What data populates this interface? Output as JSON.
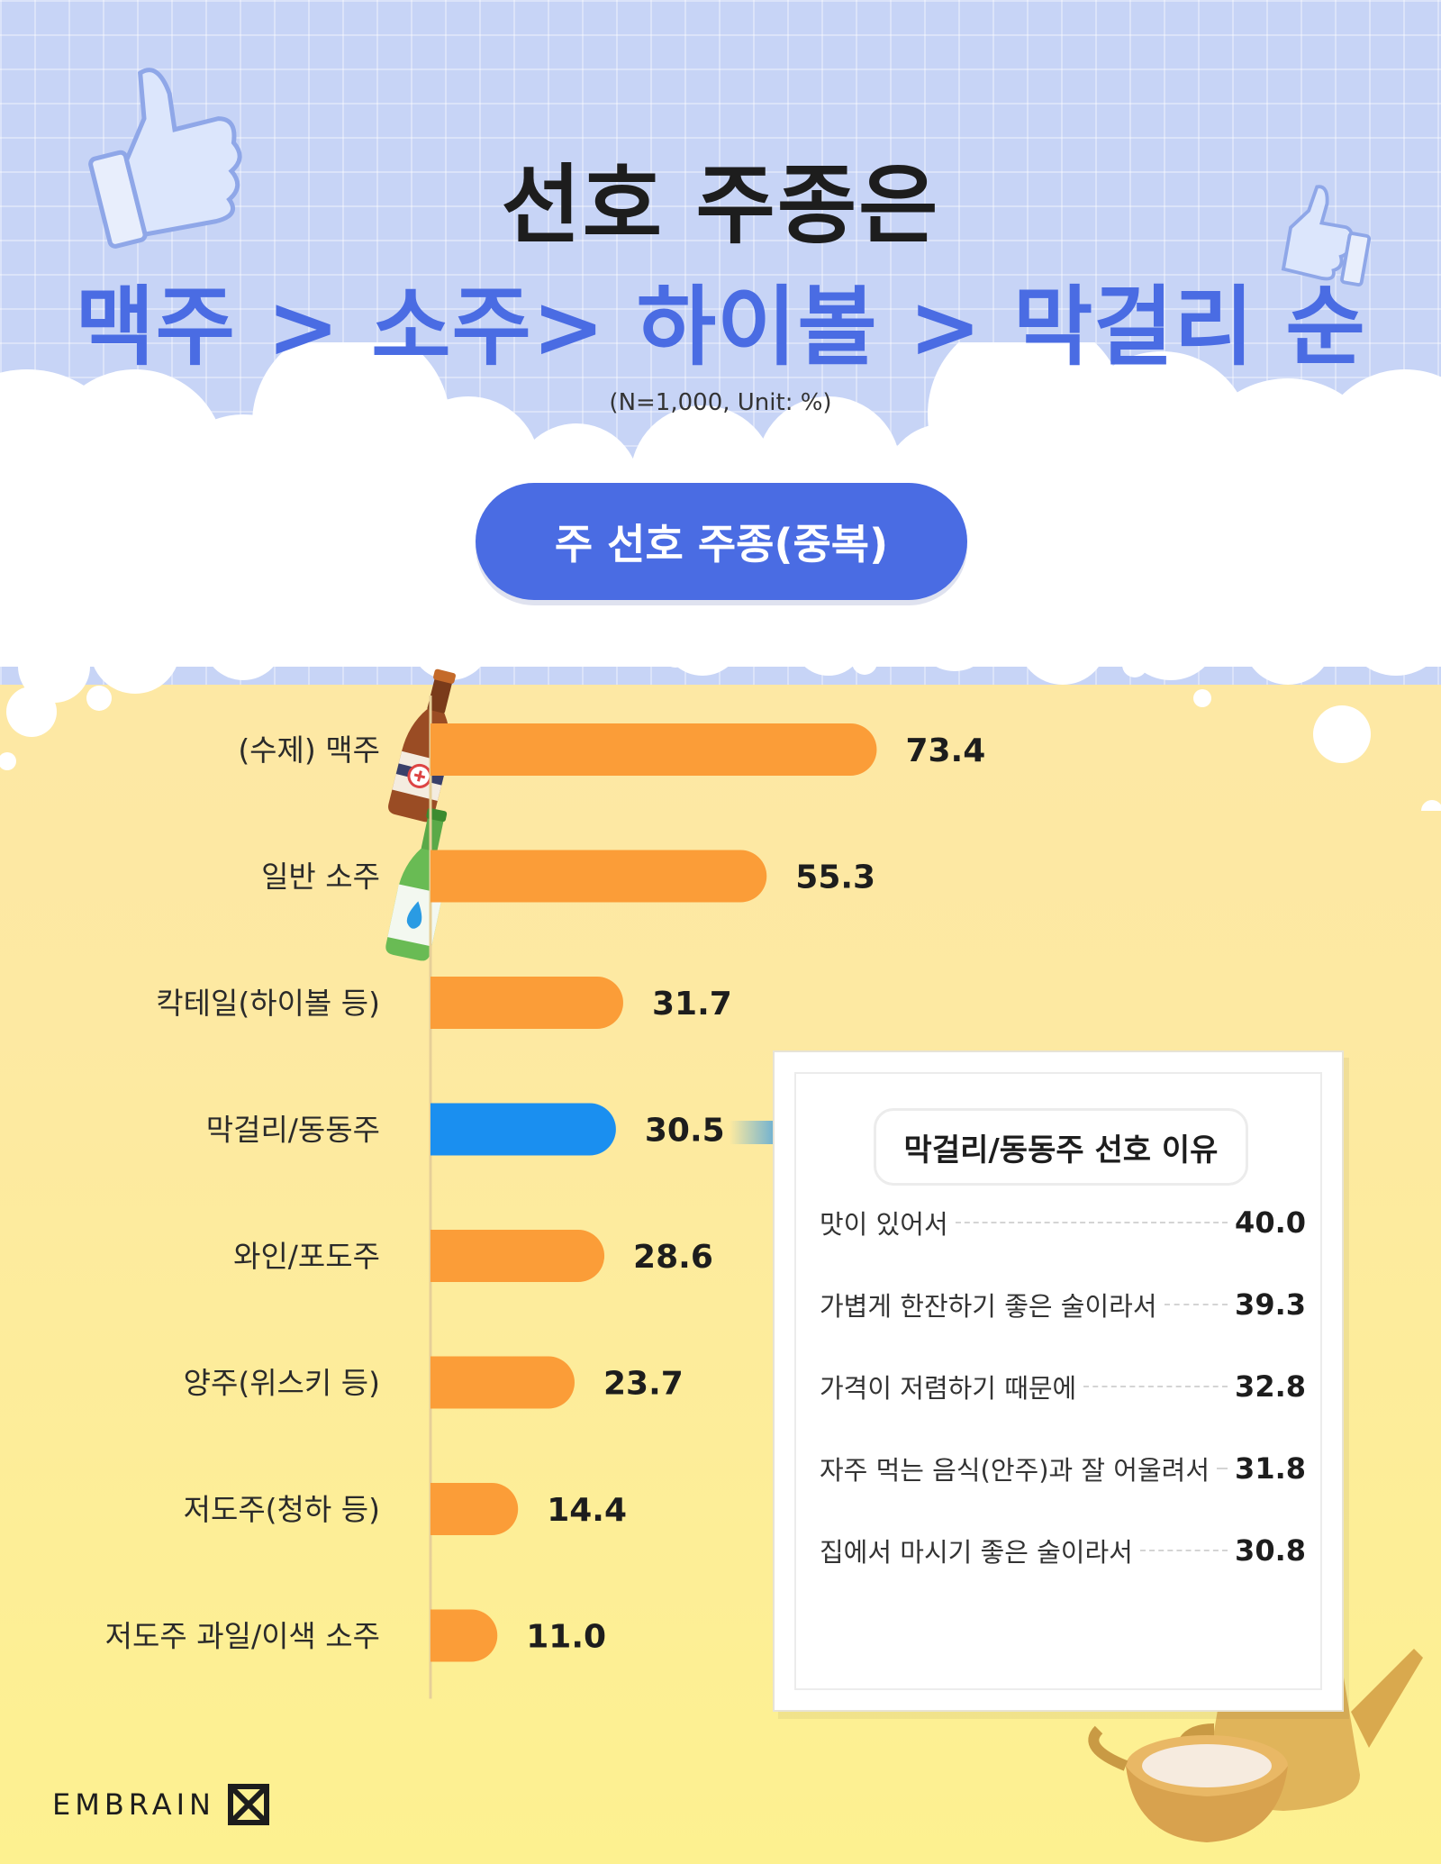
{
  "header": {
    "title_line1": "선호 주종은",
    "title_line2": "맥주 > 소주> 하이볼 > 막걸리 순",
    "note": "(N=1,000, Unit: %)",
    "pill_label": "주 선호 주종(중복)"
  },
  "colors": {
    "bar": "#fb9d38",
    "highlight_bar": "#1a8ff0",
    "accent": "#4a6ce3"
  },
  "chart_data": {
    "type": "bar",
    "orientation": "horizontal",
    "categories": [
      "(수제) 맥주",
      "일반 소주",
      "칵테일(하이볼 등)",
      "막걸리/동동주",
      "와인/포도주",
      "양주(위스키 등)",
      "저도주(청하 등)",
      "저도주 과일/이색 소주"
    ],
    "values": [
      73.4,
      55.3,
      31.7,
      30.5,
      28.6,
      23.7,
      14.4,
      11.0
    ],
    "value_labels": [
      "73.4",
      "55.3",
      "31.7",
      "30.5",
      "28.6",
      "23.7",
      "14.4",
      "11.0"
    ],
    "highlight_index": 3,
    "xlim": [
      0,
      100
    ],
    "grid": false,
    "legend": "none"
  },
  "reasons_panel": {
    "title": "막걸리/동동주 선호 이유",
    "items": [
      {
        "label": "맛이 있어서",
        "value": "40.0"
      },
      {
        "label": "가볍게 한잔하기 좋은 술이라서",
        "value": "39.3"
      },
      {
        "label": "가격이 저렴하기 때문에",
        "value": "32.8"
      },
      {
        "label": "자주 먹는 음식(안주)과 잘 어울려서",
        "value": "31.8"
      },
      {
        "label": "집에서 마시기 좋은 술이라서",
        "value": "30.8"
      }
    ]
  },
  "brand": {
    "logo_text": "EMBRAIN"
  },
  "icons": [
    "thumbs-up-icon",
    "beer-bottle-icon",
    "soju-bottle-icon",
    "arrow-right-icon",
    "kettle-icon",
    "makgeolli-bowl-icon",
    "embrain-logo-icon"
  ]
}
